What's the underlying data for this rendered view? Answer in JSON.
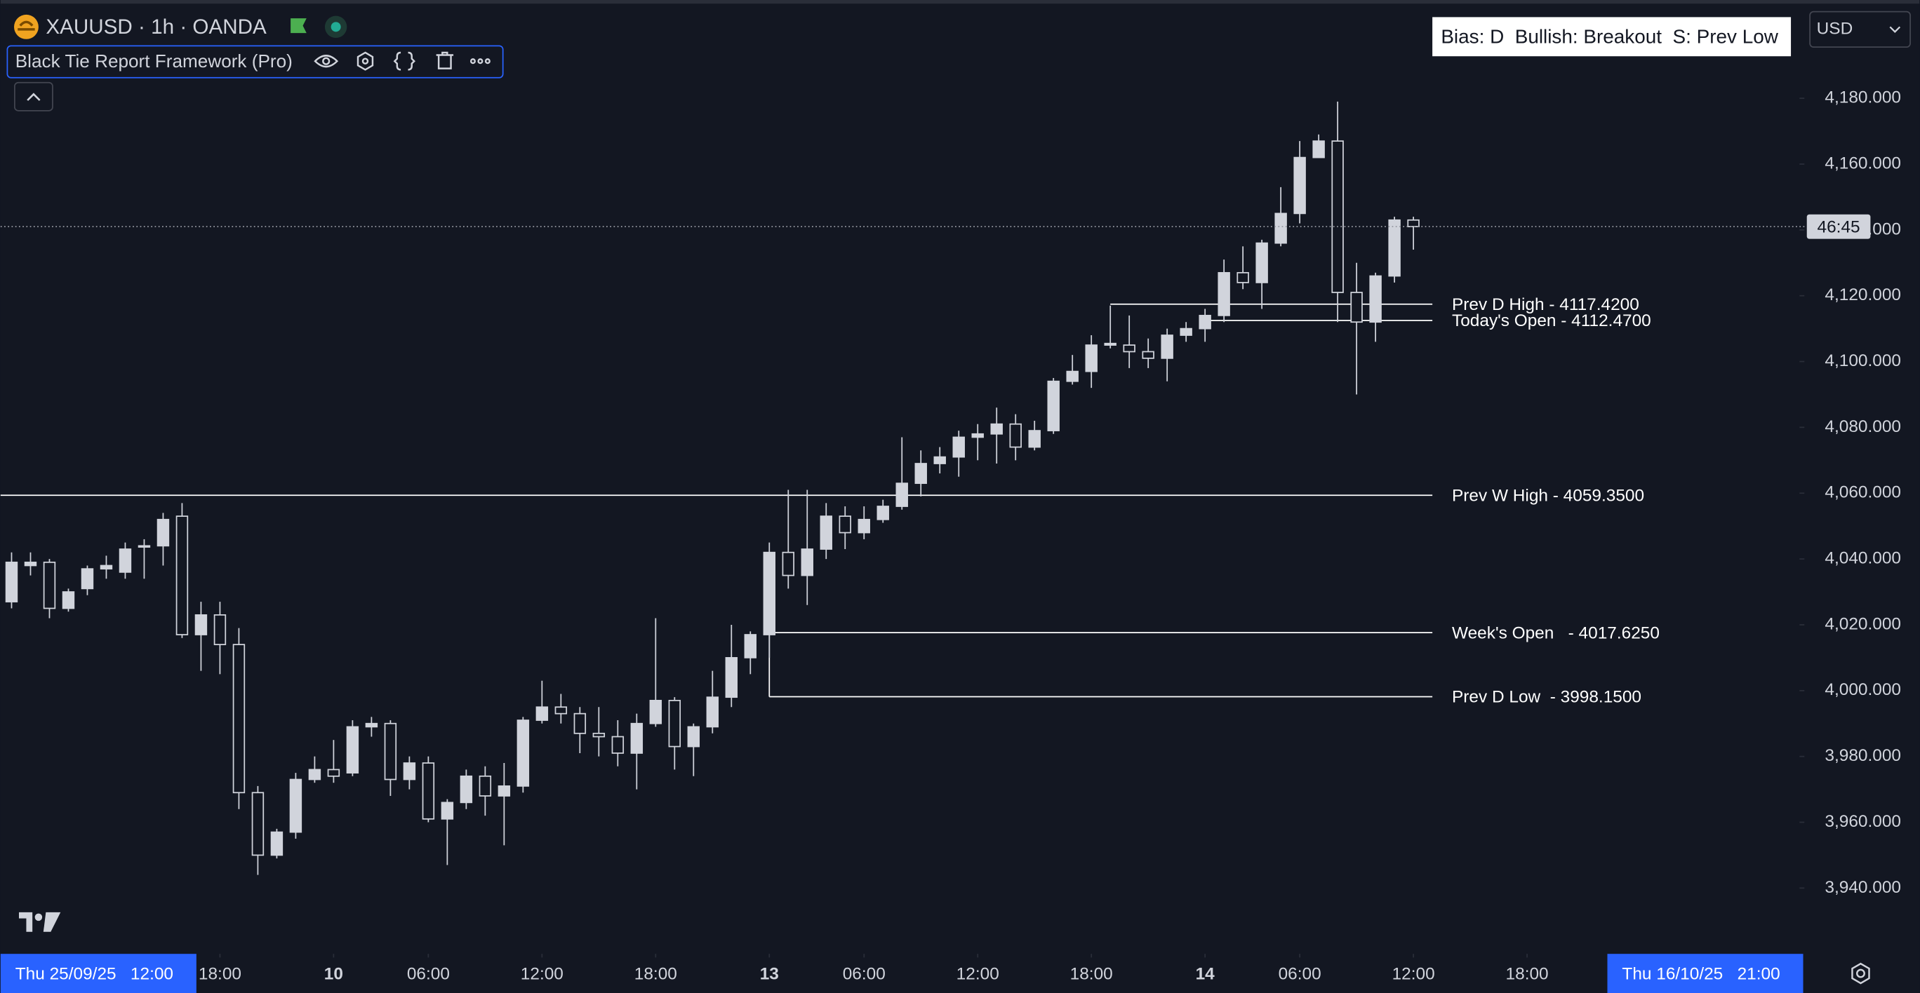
{
  "ui": {
    "symbol": "XAUUSD · 1h · OANDA",
    "indicator": "Black Tie Report Framework (Pro)",
    "bias": "Bias: D  Bullish: Breakout  S: Prev Low",
    "currency": "USD",
    "countdown": "46:45",
    "start_date": "Thu 25/09/25   12:00",
    "end_date": "Thu 16/10/25   21:00"
  },
  "chart_data": {
    "type": "candlestick",
    "up_color": "#d1d4dc",
    "down_color": "#d1d4dc",
    "open": [
      4027,
      4038,
      4039,
      4025,
      4031,
      4037,
      4036,
      4044,
      4044,
      4053,
      4017,
      4023,
      4014,
      3969,
      3950,
      3957,
      3973,
      3976,
      3975,
      3989,
      3990,
      3973,
      3978,
      3961,
      3966,
      3974,
      3968,
      3971,
      3991,
      3995,
      3993,
      3987,
      3986,
      3981,
      3990,
      3997,
      3983,
      3989,
      3998,
      4010,
      4017,
      4042,
      4035,
      4043,
      4053,
      4048,
      4052,
      4056,
      4063,
      4069,
      4071,
      4077,
      4078,
      4081,
      4074,
      4079,
      4094,
      4097,
      4105,
      4105,
      4103,
      4101,
      4108,
      4110,
      4114,
      4127,
      4124,
      4136,
      4145,
      4162,
      4167,
      4121,
      4112,
      4126,
      4143
    ],
    "high": [
      4042,
      4042,
      4040,
      4031,
      4038,
      4041,
      4045,
      4046,
      4054,
      4057,
      4027,
      4027,
      4019,
      3971,
      3958,
      3975,
      3980,
      3985,
      3991,
      3992,
      3991,
      3980,
      3980,
      3967,
      3976,
      3977,
      3978,
      3992,
      4003,
      3999,
      3995,
      3995,
      3991,
      3993,
      4022,
      3998,
      3990,
      4006,
      4020,
      4018,
      4045,
      4061,
      4061,
      4057,
      4056,
      4056,
      4058,
      4077,
      4073,
      4074,
      4079,
      4081,
      4086,
      4084,
      4082,
      4095,
      4102,
      4108,
      4117,
      4114,
      4107,
      4110,
      4112,
      4116,
      4131,
      4135,
      4137,
      4153,
      4167,
      4169,
      4179,
      4130,
      4127,
      4144,
      4144
    ],
    "low": [
      4025,
      4035,
      4022,
      4024,
      4029,
      4034,
      4034,
      4034,
      4038,
      4016,
      4006,
      4005,
      3964,
      3944,
      3949,
      3955,
      3972,
      3972,
      3974,
      3986,
      3968,
      3970,
      3960,
      3947,
      3964,
      3962,
      3953,
      3969,
      3990,
      3990,
      3981,
      3980,
      3977,
      3970,
      3989,
      3976,
      3974,
      3987,
      3995,
      4005,
      4010,
      4031,
      4026,
      4040,
      4043,
      4046,
      4051,
      4055,
      4059,
      4066,
      4065,
      4070,
      4069,
      4070,
      4073,
      4078,
      4093,
      4092,
      4104,
      4098,
      4098,
      4094,
      4106,
      4106,
      4112,
      4122,
      4116,
      4135,
      4142,
      4162,
      4112,
      4090,
      4106,
      4124,
      4134
    ],
    "close": [
      4039,
      4039,
      4025,
      4030,
      4037,
      4038,
      4043,
      4044,
      4052,
      4017,
      4023,
      4014,
      3969,
      3950,
      3957,
      3973,
      3976,
      3974,
      3989,
      3990,
      3973,
      3978,
      3961,
      3966,
      3974,
      3968,
      3971,
      3991,
      3995,
      3993,
      3987,
      3986,
      3981,
      3990,
      3997,
      3983,
      3989,
      3998,
      4010,
      4017,
      4042,
      4035,
      4043,
      4053,
      4048,
      4052,
      4056,
      4063,
      4069,
      4071,
      4077,
      4078,
      4081,
      4074,
      4079,
      4094,
      4097,
      4105,
      4105.5,
      4103,
      4101,
      4108,
      4110,
      4114,
      4127,
      4124,
      4136,
      4145,
      4162,
      4167,
      4121,
      4112,
      4126,
      4143,
      4141
    ],
    "xlim": [
      -0.58,
      94.38
    ],
    "xticks": [
      {
        "value": 11,
        "label": "18:00"
      },
      {
        "value": 17,
        "label": "10"
      },
      {
        "value": 22,
        "label": "06:00"
      },
      {
        "value": 28,
        "label": "12:00"
      },
      {
        "value": 34,
        "label": "18:00"
      },
      {
        "value": 40,
        "label": "13"
      },
      {
        "value": 45,
        "label": "06:00"
      },
      {
        "value": 51,
        "label": "12:00"
      },
      {
        "value": 57,
        "label": "18:00"
      },
      {
        "value": 63,
        "label": "14"
      },
      {
        "value": 68,
        "label": "06:00"
      },
      {
        "value": 74,
        "label": "12:00"
      },
      {
        "value": 80,
        "label": "18:00"
      }
    ],
    "ylim": [
      3920,
      4195
    ],
    "yticks": [
      {
        "value": 3940,
        "label": "3,940.000"
      },
      {
        "value": 3960,
        "label": "3,960.000"
      },
      {
        "value": 3980,
        "label": "3,980.000"
      },
      {
        "value": 4000,
        "label": "4,000.000"
      },
      {
        "value": 4020,
        "label": "4,020.000"
      },
      {
        "value": 4040,
        "label": "4,040.000"
      },
      {
        "value": 4060,
        "label": "4,060.000"
      },
      {
        "value": 4080,
        "label": "4,080.000"
      },
      {
        "value": 4100,
        "label": "4,100.000"
      },
      {
        "value": 4120,
        "label": "4,120.000"
      },
      {
        "value": 4140,
        "label": "4,140.000"
      },
      {
        "value": 4160,
        "label": "4,160.000"
      },
      {
        "value": 4180,
        "label": "4,180.000"
      }
    ],
    "levels": [
      {
        "label": "Prev D High - 4117.4200",
        "value": 4117.42
      },
      {
        "label": "Today's Open - 4112.4700",
        "value": 4112.47
      },
      {
        "label": "Prev W High - 4059.3500",
        "value": 4059.35
      },
      {
        "label": "Week's Open   - 4017.6250",
        "value": 4017.625
      },
      {
        "label": "Prev D Low  - 3998.1500",
        "value": 3998.15
      }
    ]
  }
}
